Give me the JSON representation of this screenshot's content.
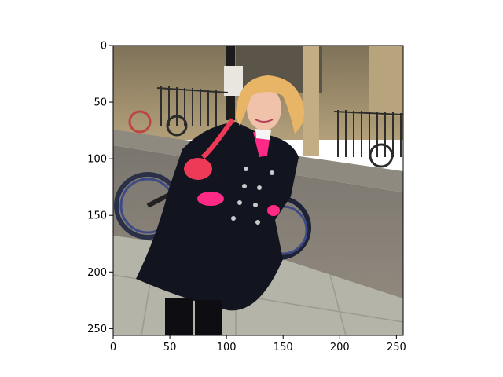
{
  "figure": {
    "background": "#ffffff",
    "image_description_colors": {
      "coat": "#12141f",
      "sweater": "#ff2a86",
      "bag": "#ef3a57",
      "hair": "#e8b566",
      "stone_wall": "#a58f6a",
      "road": "#868178",
      "pavement": "#b7b7ab"
    }
  },
  "axes": {
    "x_ticks": [
      "0",
      "50",
      "100",
      "150",
      "200",
      "250"
    ],
    "y_ticks": [
      "0",
      "50",
      "100",
      "150",
      "200",
      "250"
    ],
    "x_tick_values": [
      0,
      50,
      100,
      150,
      200,
      250
    ],
    "y_tick_values": [
      0,
      50,
      100,
      150,
      200,
      250
    ],
    "xlim": [
      0,
      256
    ],
    "ylim": [
      256,
      0
    ]
  }
}
